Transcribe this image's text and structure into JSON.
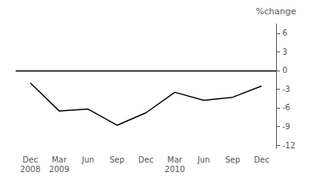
{
  "chart_data": {
    "type": "line",
    "categories": [
      "Dec\n2008",
      "Mar\n2009",
      "Jun",
      "Sep",
      "Dec",
      "Mar\n2010",
      "Jun",
      "Sep",
      "Dec"
    ],
    "values": [
      -2.0,
      -6.5,
      -6.2,
      -8.8,
      -6.8,
      -3.5,
      -4.8,
      -4.3,
      -2.5
    ],
    "y_label": "%change",
    "ylim": [
      -12.5,
      7.5
    ],
    "yticks": [
      6,
      3,
      0,
      -3,
      -6,
      -9,
      -12
    ],
    "hline": 0,
    "color": "#000000",
    "grid": false
  }
}
